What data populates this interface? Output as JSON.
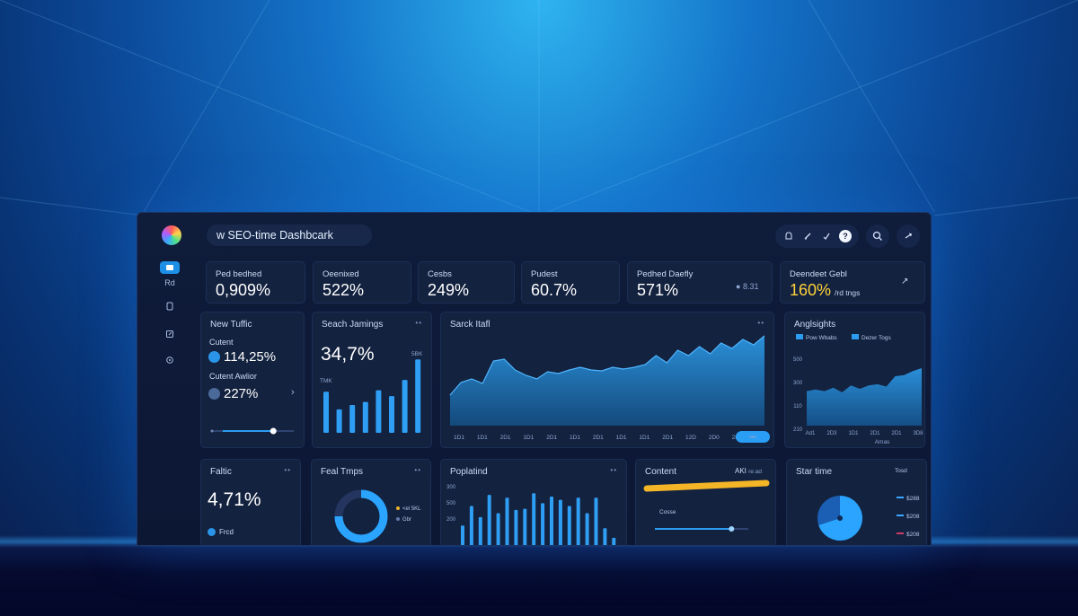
{
  "header": {
    "search_text": "w SEO-time Dashbcark"
  },
  "sidebar": {
    "items": [
      "",
      "Rd",
      "",
      "",
      ""
    ]
  },
  "stats": [
    {
      "label": "Ped bedhed",
      "value": "0,909%"
    },
    {
      "label": "Oeenixed",
      "value": "522%"
    },
    {
      "label": "Cesbs",
      "value": "249%"
    },
    {
      "label": "Pudest",
      "value": "60.7%"
    },
    {
      "label": "Pedhed Daefly",
      "value": "571%",
      "extra": "8.31"
    },
    {
      "label": "Deendeet Gebl",
      "value": "160%",
      "suffix": "/rd tngs"
    }
  ],
  "new_traffic": {
    "title": "New Tuffic",
    "row1_label": "Cutent",
    "row1_value": "114,25%",
    "row2_label": "Cutent Awlior",
    "row2_value": "227%",
    "slider_value": 0.75
  },
  "search_rankings": {
    "title": "Seach Jamings",
    "value": "34,7%",
    "label_top": "5BK",
    "label_side": "TMK"
  },
  "search_traffic": {
    "title": "Sarck Itafl",
    "x_labels": [
      "1D1",
      "1D1",
      "2D1",
      "1D1",
      "2D1",
      "1D1",
      "2D1",
      "1D1",
      "1D1",
      "2D1",
      "12D",
      "2D0",
      "2D1"
    ],
    "button": "•••"
  },
  "insights": {
    "title": "Anglsights",
    "legend": [
      "Pow Wbabs",
      "Dezer Togs"
    ],
    "y_labels": [
      "500",
      "300",
      "110",
      "210"
    ],
    "x_labels": [
      "Ad1",
      "2D3",
      "1D1",
      "2D1",
      "2D1",
      "3D8"
    ],
    "x_caption": "Amas"
  },
  "fallic": {
    "title": "Faltic",
    "value": "4,71%",
    "legend": "Frcd"
  },
  "feat_tmps": {
    "title": "Feal Tmps",
    "legend": [
      "<el 5KL",
      "Gbr"
    ]
  },
  "popular": {
    "title": "Poplatind",
    "y_labels": [
      "300",
      "500",
      "200"
    ]
  },
  "content": {
    "title": "Content",
    "right_label": "AKI",
    "right_sub": "re:ad",
    "sub_label": "Cosse",
    "progress": 0.95,
    "slider_value": 0.82
  },
  "start_time": {
    "title": "Star time",
    "right_label": "Tosd",
    "legend": [
      "$288",
      "$208",
      "$208"
    ]
  },
  "chart_data": [
    {
      "type": "bar",
      "title": "Seach Jamings",
      "values": [
        56,
        32,
        38,
        42,
        58,
        50,
        72,
        100
      ]
    },
    {
      "type": "area",
      "title": "Sarck Itafl",
      "values": [
        34,
        48,
        52,
        47,
        72,
        74,
        62,
        56,
        52,
        60,
        58,
        62,
        65,
        62,
        61,
        65,
        63,
        65,
        68,
        78,
        70,
        84,
        78,
        88,
        80,
        92,
        86,
        96,
        90,
        100
      ]
    },
    {
      "type": "area",
      "title": "Anglsights",
      "values": [
        60,
        63,
        60,
        66,
        58,
        70,
        64,
        70,
        72,
        68,
        86,
        88,
        95,
        100
      ]
    },
    {
      "type": "bar",
      "title": "Poplatind",
      "values": [
        40,
        75,
        55,
        95,
        62,
        90,
        68,
        70,
        98,
        80,
        92,
        86,
        75,
        90,
        62,
        90,
        35,
        18
      ]
    },
    {
      "type": "pie",
      "title": "Feal Tmps",
      "values": [
        75,
        25
      ]
    },
    {
      "type": "pie",
      "title": "Star time",
      "values": [
        70,
        30
      ]
    }
  ]
}
